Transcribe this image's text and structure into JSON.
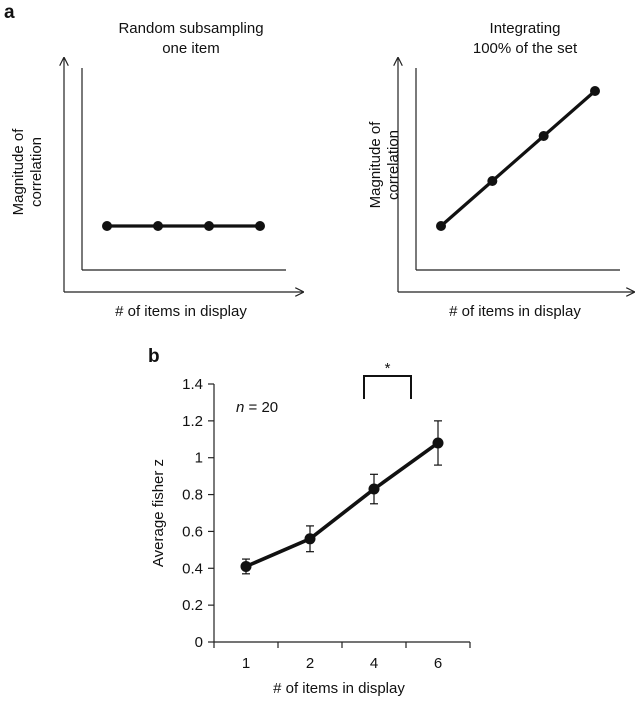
{
  "chart_data": [
    {
      "panel": "a",
      "type": "line",
      "title_lines": [
        "Random subsampling",
        "one item"
      ],
      "xlabel": "# of items in display",
      "ylabel_lines": [
        "Magnitude of",
        "correlation"
      ],
      "x": [
        1,
        2,
        3,
        4
      ],
      "y": [
        1,
        1,
        1,
        1
      ],
      "ylim": [
        0,
        5
      ]
    },
    {
      "type": "line",
      "title_lines": [
        "Integrating",
        "100% of the set"
      ],
      "xlabel": "# of items in display",
      "ylabel_lines": [
        "Magnitude of",
        "correlation"
      ],
      "x": [
        1,
        2,
        3,
        4
      ],
      "y": [
        1,
        2,
        3,
        4
      ],
      "ylim": [
        0,
        5
      ]
    },
    {
      "panel": "b",
      "type": "line",
      "categories": [
        "1",
        "2",
        "4",
        "6"
      ],
      "values": [
        0.41,
        0.56,
        0.83,
        1.08
      ],
      "errors": [
        0.04,
        0.07,
        0.08,
        0.12
      ],
      "xlabel": "# of items in display",
      "ylabel": "Average fisher z",
      "yticks": [
        "0",
        "0.2",
        "0.4",
        "0.6",
        "0.8",
        "1",
        "1.2",
        "1.4"
      ],
      "ylim": [
        0,
        1.4
      ],
      "annotation_n_label": "n",
      "annotation_n_value": " = 20",
      "significance": {
        "between": [
          "4",
          "6"
        ],
        "label": "*"
      },
      "grid": false
    }
  ]
}
